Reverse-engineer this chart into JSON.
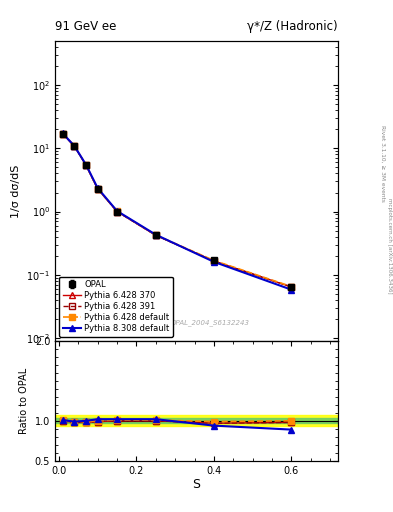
{
  "title_left": "91 GeV ee",
  "title_right": "γ*/Z (Hadronic)",
  "ylabel_main": "1/σ dσ/dS",
  "ylabel_ratio": "Ratio to OPAL",
  "xlabel": "S",
  "watermark": "OPAL_2004_S6132243",
  "right_label": "Rivet 3.1.10, ≥ 3M events",
  "right_label2": "mcplots.cern.ch [arXiv:1306.3436]",
  "xdata": [
    0.01,
    0.04,
    0.07,
    0.1,
    0.15,
    0.25,
    0.4,
    0.6
  ],
  "opal_y": [
    17.0,
    11.0,
    5.5,
    2.3,
    1.0,
    0.42,
    0.17,
    0.065
  ],
  "opal_yerr": [
    0.4,
    0.25,
    0.18,
    0.08,
    0.03,
    0.015,
    0.007,
    0.003
  ],
  "py6_370_y": [
    17.0,
    10.8,
    5.4,
    2.28,
    1.0,
    0.42,
    0.165,
    0.064
  ],
  "py6_391_y": [
    17.0,
    10.8,
    5.4,
    2.28,
    1.0,
    0.42,
    0.165,
    0.064
  ],
  "py6_def_y": [
    17.1,
    10.9,
    5.45,
    2.3,
    1.01,
    0.425,
    0.168,
    0.065
  ],
  "py8_def_y": [
    17.2,
    10.9,
    5.5,
    2.35,
    1.02,
    0.43,
    0.16,
    0.058
  ],
  "py6_370_ratio": [
    1.0,
    0.98,
    0.98,
    0.99,
    1.0,
    1.0,
    0.97,
    0.98
  ],
  "py6_391_ratio": [
    1.0,
    0.98,
    0.98,
    0.99,
    1.0,
    1.0,
    0.97,
    0.98
  ],
  "py6_def_ratio": [
    1.01,
    0.99,
    0.99,
    1.0,
    1.01,
    1.01,
    0.99,
    1.0
  ],
  "py8_def_ratio": [
    1.01,
    0.99,
    1.0,
    1.02,
    1.02,
    1.02,
    0.94,
    0.89
  ],
  "band_green_lo": 0.97,
  "band_green_hi": 1.03,
  "band_yellow_lo": 0.93,
  "band_yellow_hi": 1.07,
  "color_opal": "#000000",
  "color_py6_370": "#cc0000",
  "color_py6_391": "#990000",
  "color_py6_def": "#ff8800",
  "color_py8_def": "#0000cc",
  "ylim_main": [
    0.009,
    500
  ],
  "ylim_ratio": [
    0.5,
    2.0
  ],
  "xlim": [
    -0.01,
    0.72
  ]
}
